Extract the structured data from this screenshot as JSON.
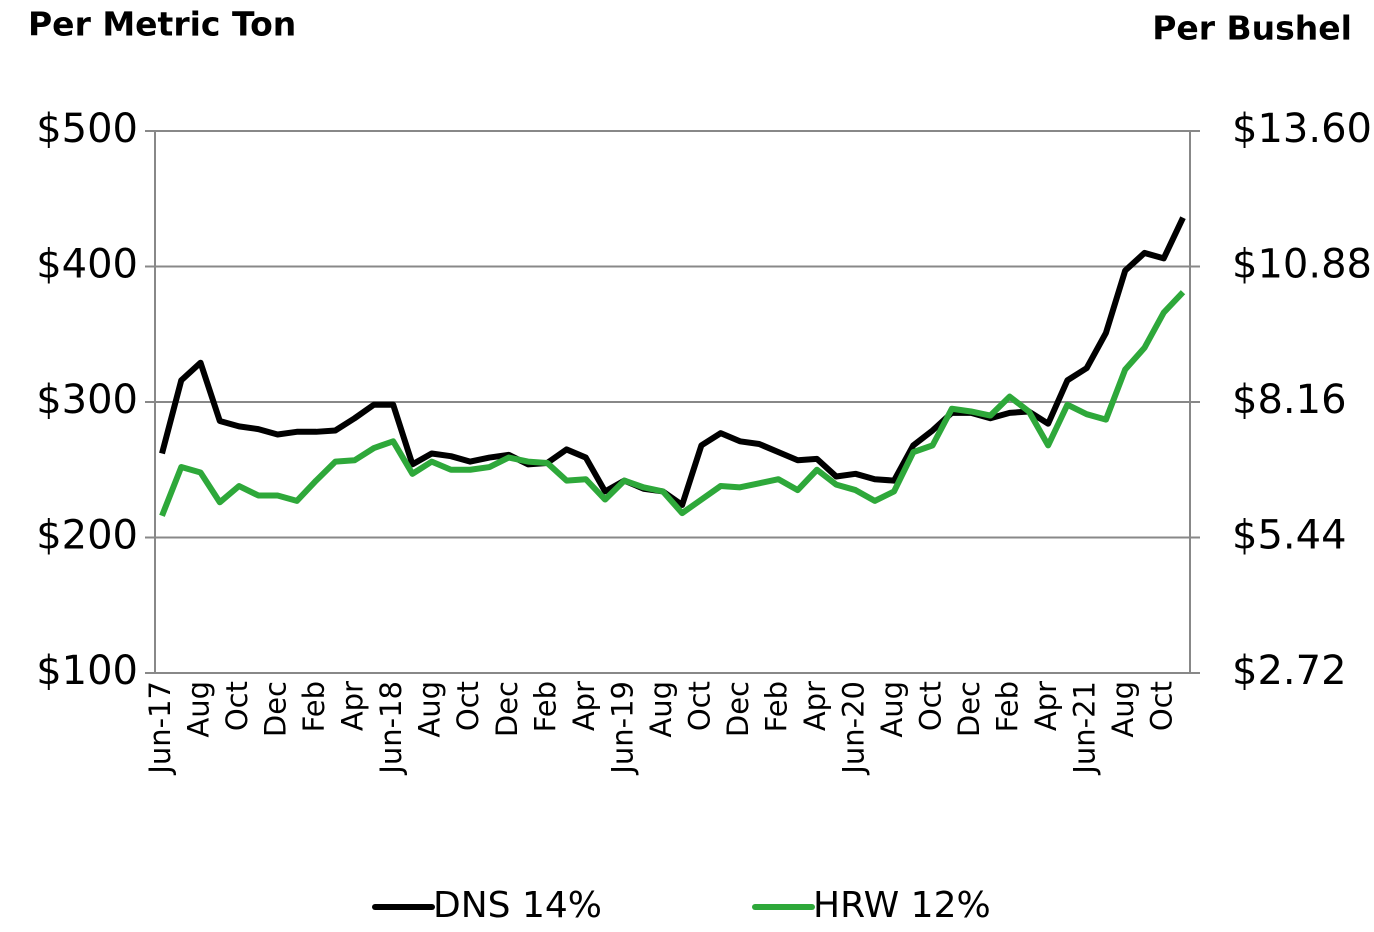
{
  "chart_data": {
    "type": "line",
    "y_label": "Per Metric Ton",
    "y2_label": "Per Bushel",
    "categories": [
      "Jun-17",
      null,
      "Aug",
      null,
      "Oct",
      null,
      "Dec",
      null,
      "Feb",
      null,
      "Apr",
      null,
      "Jun-18",
      null,
      "Aug",
      null,
      "Oct",
      null,
      "Dec",
      null,
      "Feb",
      null,
      "Apr",
      null,
      "Jun-19",
      null,
      "Aug",
      null,
      "Oct",
      null,
      "Dec",
      null,
      "Feb",
      null,
      "Apr",
      null,
      "Jun-20",
      null,
      "Aug",
      null,
      "Oct",
      null,
      "Dec",
      null,
      "Feb",
      null,
      "Apr",
      null,
      "Jun-21",
      null,
      "Aug",
      null,
      "Oct",
      null
    ],
    "series": [
      {
        "name": "DNS 14%",
        "color": "#000000",
        "values": [
          262,
          316,
          329,
          286,
          282,
          280,
          276,
          278,
          278,
          279,
          288,
          298,
          298,
          254,
          262,
          260,
          256,
          259,
          261,
          254,
          255,
          265,
          259,
          234,
          242,
          236,
          234,
          224,
          268,
          277,
          271,
          269,
          263,
          257,
          258,
          245,
          247,
          243,
          242,
          268,
          279,
          292,
          292,
          288,
          292,
          293,
          284,
          316,
          325,
          351,
          397,
          410,
          406,
          436
        ]
      },
      {
        "name": "HRW 12%",
        "color": "#2ea83a",
        "values": [
          216,
          252,
          248,
          226,
          238,
          231,
          231,
          227,
          242,
          256,
          257,
          266,
          271,
          247,
          256,
          250,
          250,
          252,
          259,
          256,
          255,
          242,
          243,
          228,
          242,
          237,
          234,
          218,
          228,
          238,
          237,
          240,
          243,
          235,
          250,
          239,
          235,
          227,
          234,
          263,
          268,
          295,
          293,
          290,
          304,
          293,
          268,
          298,
          291,
          287,
          324,
          340,
          366,
          381
        ]
      }
    ],
    "ylim": [
      100,
      500
    ],
    "yticks": [
      {
        "value": 100,
        "label": "$100"
      },
      {
        "value": 200,
        "label": "$200"
      },
      {
        "value": 300,
        "label": "$300"
      },
      {
        "value": 400,
        "label": "$400"
      },
      {
        "value": 500,
        "label": "$500"
      }
    ],
    "y2lim": [
      2.72,
      13.6
    ],
    "y2ticks": [
      {
        "value": 2.72,
        "label": "$2.72"
      },
      {
        "value": 5.44,
        "label": "$5.44"
      },
      {
        "value": 8.16,
        "label": "$8.16"
      },
      {
        "value": 10.88,
        "label": "$10.88"
      },
      {
        "value": 13.6,
        "label": "$13.60"
      }
    ],
    "grid": true,
    "legend": "bottom"
  }
}
